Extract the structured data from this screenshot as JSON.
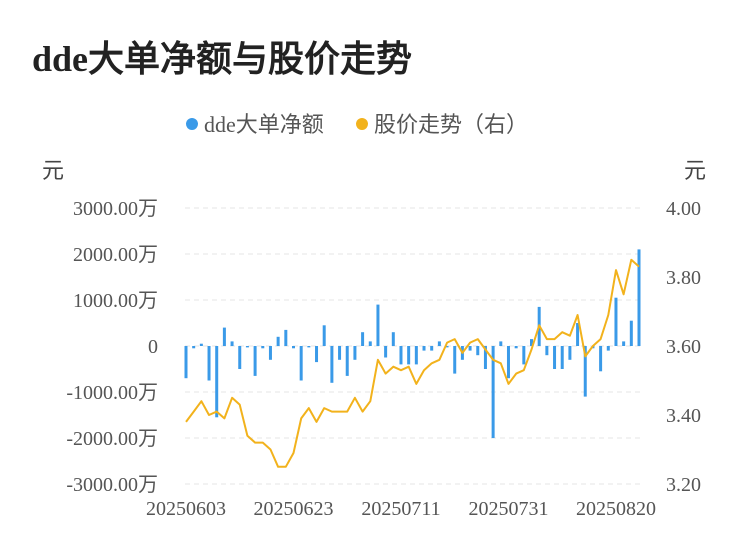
{
  "title": "dde大单净额与股价走势",
  "colors": {
    "bar": "#3a9ae8",
    "line": "#f2b21c",
    "grid": "#e6e6e6",
    "text": "#555555",
    "title": "#222222"
  },
  "chart_data": {
    "type": "bar+line",
    "title": "dde大单净额与股价走势",
    "legend": {
      "placement": "top-center",
      "items": [
        {
          "label": "dde大单净额",
          "color": "#3a9ae8"
        },
        {
          "label": "股价走势（右）",
          "color": "#f2b21c"
        }
      ]
    },
    "y_left": {
      "unit": "元",
      "ylim": [
        -3000,
        3000
      ],
      "ticks": [
        3000,
        2000,
        1000,
        0,
        -1000,
        -2000,
        -3000
      ],
      "tick_labels": [
        "3000.00万",
        "2000.00万",
        "1000.00万",
        "0",
        "-1000.00万",
        "-2000.00万",
        "-3000.00万"
      ]
    },
    "y_right": {
      "unit": "元",
      "ylim": [
        3.2,
        4.0
      ],
      "ticks": [
        4.0,
        3.8,
        3.6,
        3.4,
        3.2
      ],
      "tick_labels": [
        "4.00",
        "3.80",
        "3.60",
        "3.40",
        "3.20"
      ]
    },
    "x_tick_labels": [
      "20250603",
      "20250623",
      "20250711",
      "20250731",
      "20250820"
    ],
    "x_tick_indices": [
      0,
      14,
      28,
      42,
      56
    ],
    "grid": true,
    "series": [
      {
        "name": "dde大单净额",
        "type": "bar",
        "axis": "left",
        "values": [
          -700,
          -50,
          50,
          -750,
          -1550,
          400,
          100,
          -500,
          -30,
          -650,
          -50,
          -300,
          200,
          350,
          -50,
          -750,
          -30,
          -350,
          450,
          -800,
          -300,
          -650,
          -300,
          300,
          100,
          900,
          -250,
          300,
          -400,
          -400,
          -400,
          -100,
          -100,
          100,
          -30,
          -600,
          -300,
          -100,
          -200,
          -500,
          -2000,
          100,
          -700,
          -50,
          -400,
          150,
          850,
          -200,
          -500,
          -500,
          -300,
          500,
          -1100,
          -50,
          -550,
          -100,
          1050,
          100,
          550,
          2100
        ]
      },
      {
        "name": "股价走势（右）",
        "type": "line",
        "axis": "right",
        "values": [
          3.38,
          3.41,
          3.44,
          3.4,
          3.41,
          3.39,
          3.45,
          3.43,
          3.34,
          3.32,
          3.32,
          3.3,
          3.25,
          3.25,
          3.29,
          3.39,
          3.42,
          3.38,
          3.42,
          3.41,
          3.41,
          3.41,
          3.45,
          3.41,
          3.44,
          3.56,
          3.52,
          3.54,
          3.53,
          3.54,
          3.49,
          3.53,
          3.55,
          3.56,
          3.61,
          3.62,
          3.58,
          3.61,
          3.62,
          3.59,
          3.56,
          3.55,
          3.49,
          3.52,
          3.53,
          3.59,
          3.66,
          3.62,
          3.62,
          3.64,
          3.63,
          3.69,
          3.57,
          3.6,
          3.62,
          3.69,
          3.82,
          3.75,
          3.85,
          3.83
        ]
      }
    ]
  }
}
